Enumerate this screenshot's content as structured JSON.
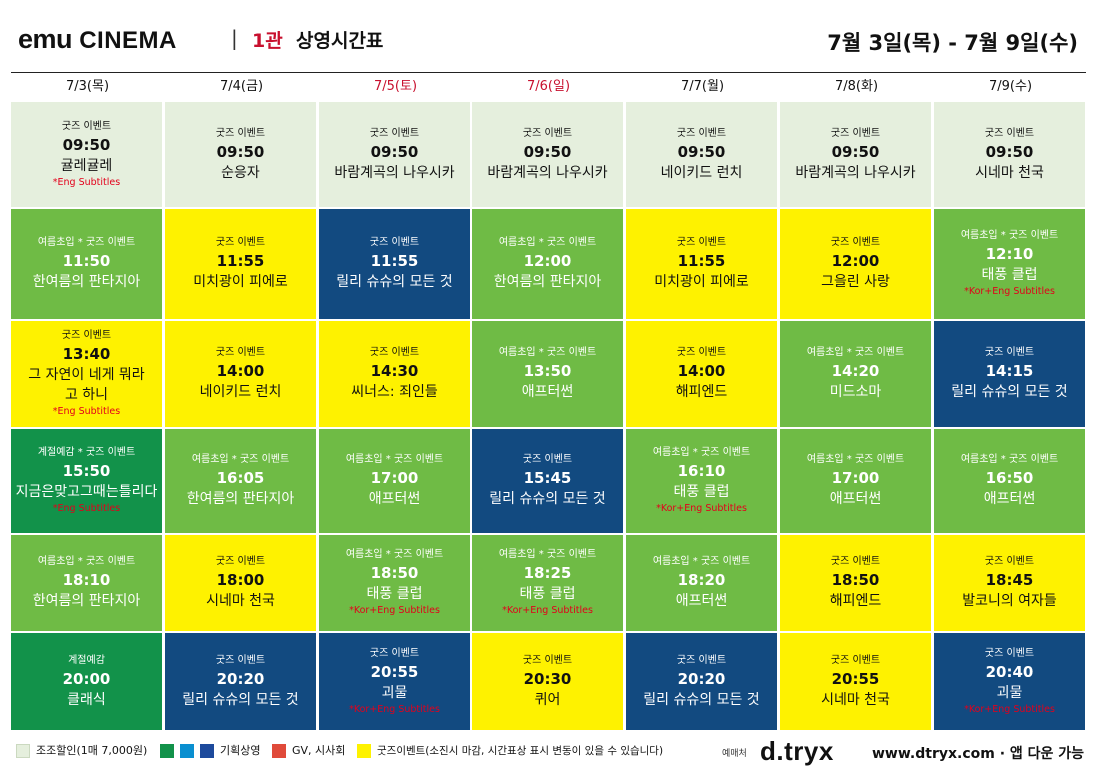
{
  "header": {
    "logo_emu": "emu",
    "logo_cinema": "CINEMA",
    "separator": "|",
    "hall": "1관",
    "title": "상영시간표",
    "period": "7월 3일(목) - 7월 9일(수)"
  },
  "days": [
    {
      "label": "7/3(목)",
      "weekend": false
    },
    {
      "label": "7/4(금)",
      "weekend": false
    },
    {
      "label": "7/5(토)",
      "weekend": true
    },
    {
      "label": "7/6(일)",
      "weekend": true
    },
    {
      "label": "7/7(월)",
      "weekend": false
    },
    {
      "label": "7/8(화)",
      "weekend": false
    },
    {
      "label": "7/9(수)",
      "weekend": false
    }
  ],
  "colors": {
    "light": "#e5efdd",
    "green": "#6fbb45",
    "dark_green": "#12924a",
    "yellow": "#fef200",
    "blue": "#124a80",
    "red": "#e3001b",
    "accent": "#c8102e"
  },
  "schedule": [
    [
      {
        "type": "light",
        "event": "굿즈 이벤트",
        "time": "09:50",
        "movie": "귤레귤레",
        "sub": "*Eng Subtitles"
      },
      {
        "type": "light",
        "event": "굿즈 이벤트",
        "time": "09:50",
        "movie": "순응자",
        "sub": ""
      },
      {
        "type": "light",
        "event": "굿즈 이벤트",
        "time": "09:50",
        "movie": "바람계곡의 나우시카",
        "sub": ""
      },
      {
        "type": "light",
        "event": "굿즈 이벤트",
        "time": "09:50",
        "movie": "바람계곡의 나우시카",
        "sub": ""
      },
      {
        "type": "light",
        "event": "굿즈 이벤트",
        "time": "09:50",
        "movie": "네이키드 런치",
        "sub": ""
      },
      {
        "type": "light",
        "event": "굿즈 이벤트",
        "time": "09:50",
        "movie": "바람계곡의 나우시카",
        "sub": ""
      },
      {
        "type": "light",
        "event": "굿즈 이벤트",
        "time": "09:50",
        "movie": "시네마 천국",
        "sub": ""
      }
    ],
    [
      {
        "type": "green",
        "event": "여름초입 * 굿즈 이벤트",
        "time": "11:50",
        "movie": "한여름의 판타지아",
        "sub": ""
      },
      {
        "type": "yellow",
        "event": "굿즈 이벤트",
        "time": "11:55",
        "movie": "미치광이 피에로",
        "sub": ""
      },
      {
        "type": "blue",
        "event": "굿즈 이벤트",
        "time": "11:55",
        "movie": "릴리 슈슈의 모든 것",
        "sub": ""
      },
      {
        "type": "green",
        "event": "여름초입 * 굿즈 이벤트",
        "time": "12:00",
        "movie": "한여름의 판타지아",
        "sub": ""
      },
      {
        "type": "yellow",
        "event": "굿즈 이벤트",
        "time": "11:55",
        "movie": "미치광이 피에로",
        "sub": ""
      },
      {
        "type": "yellow",
        "event": "굿즈 이벤트",
        "time": "12:00",
        "movie": "그을린 사랑",
        "sub": ""
      },
      {
        "type": "green",
        "event": "여름초입 * 굿즈 이벤트",
        "time": "12:10",
        "movie": "태풍 클럽",
        "sub": "*Kor+Eng Subtitles"
      }
    ],
    [
      {
        "type": "yellow",
        "event": "굿즈 이벤트",
        "time": "13:40",
        "movie": "그 자연이 네게 뭐라고 하니",
        "sub": "*Eng Subtitles"
      },
      {
        "type": "yellow",
        "event": "굿즈 이벤트",
        "time": "14:00",
        "movie": "네이키드 런치",
        "sub": ""
      },
      {
        "type": "yellow",
        "event": "굿즈 이벤트",
        "time": "14:30",
        "movie": "씨너스: 죄인들",
        "sub": ""
      },
      {
        "type": "green",
        "event": "여름초입 * 굿즈 이벤트",
        "time": "13:50",
        "movie": "애프터썬",
        "sub": ""
      },
      {
        "type": "yellow",
        "event": "굿즈 이벤트",
        "time": "14:00",
        "movie": "해피엔드",
        "sub": ""
      },
      {
        "type": "green",
        "event": "여름초입 * 굿즈 이벤트",
        "time": "14:20",
        "movie": "미드소마",
        "sub": ""
      },
      {
        "type": "blue",
        "event": "굿즈 이벤트",
        "time": "14:15",
        "movie": "릴리 슈슈의 모든 것",
        "sub": ""
      }
    ],
    [
      {
        "type": "dark",
        "event": "계절예감 * 굿즈 이벤트",
        "time": "15:50",
        "movie": "지금은맞고그때는틀리다",
        "sub": "*Eng Subtitles"
      },
      {
        "type": "green",
        "event": "여름초입 * 굿즈 이벤트",
        "time": "16:05",
        "movie": "한여름의 판타지아",
        "sub": ""
      },
      {
        "type": "green",
        "event": "여름초입 * 굿즈 이벤트",
        "time": "17:00",
        "movie": "애프터썬",
        "sub": ""
      },
      {
        "type": "blue",
        "event": "굿즈 이벤트",
        "time": "15:45",
        "movie": "릴리 슈슈의 모든 것",
        "sub": ""
      },
      {
        "type": "green",
        "event": "여름초입 * 굿즈 이벤트",
        "time": "16:10",
        "movie": "태풍 클럽",
        "sub": "*Kor+Eng Subtitles"
      },
      {
        "type": "green",
        "event": "여름초입 * 굿즈 이벤트",
        "time": "17:00",
        "movie": "애프터썬",
        "sub": ""
      },
      {
        "type": "green",
        "event": "여름초입 * 굿즈 이벤트",
        "time": "16:50",
        "movie": "애프터썬",
        "sub": ""
      }
    ],
    [
      {
        "type": "green",
        "event": "여름초입 * 굿즈 이벤트",
        "time": "18:10",
        "movie": "한여름의 판타지아",
        "sub": ""
      },
      {
        "type": "yellow",
        "event": "굿즈 이벤트",
        "time": "18:00",
        "movie": "시네마 천국",
        "sub": ""
      },
      {
        "type": "green",
        "event": "여름초입 * 굿즈 이벤트",
        "time": "18:50",
        "movie": "태풍 클럽",
        "sub": "*Kor+Eng Subtitles"
      },
      {
        "type": "green",
        "event": "여름초입 * 굿즈 이벤트",
        "time": "18:25",
        "movie": "태풍 클럽",
        "sub": "*Kor+Eng Subtitles"
      },
      {
        "type": "green",
        "event": "여름초입 * 굿즈 이벤트",
        "time": "18:20",
        "movie": "애프터썬",
        "sub": ""
      },
      {
        "type": "yellow",
        "event": "굿즈 이벤트",
        "time": "18:50",
        "movie": "해피엔드",
        "sub": ""
      },
      {
        "type": "yellow",
        "event": "굿즈 이벤트",
        "time": "18:45",
        "movie": "발코니의 여자들",
        "sub": ""
      }
    ],
    [
      {
        "type": "dark",
        "event": "계절예감",
        "time": "20:00",
        "movie": "클래식",
        "sub": ""
      },
      {
        "type": "blue",
        "event": "굿즈 이벤트",
        "time": "20:20",
        "movie": "릴리 슈슈의 모든 것",
        "sub": ""
      },
      {
        "type": "blue",
        "event": "굿즈 이벤트",
        "time": "20:55",
        "movie": "괴물",
        "sub": "*Kor+Eng Subtitles"
      },
      {
        "type": "yellow",
        "event": "굿즈 이벤트",
        "time": "20:30",
        "movie": "퀴어",
        "sub": ""
      },
      {
        "type": "blue",
        "event": "굿즈 이벤트",
        "time": "20:20",
        "movie": "릴리 슈슈의 모든 것",
        "sub": ""
      },
      {
        "type": "yellow",
        "event": "굿즈 이벤트",
        "time": "20:55",
        "movie": "시네마 천국",
        "sub": ""
      },
      {
        "type": "blue",
        "event": "굿즈 이벤트",
        "time": "20:40",
        "movie": "괴물",
        "sub": "*Kor+Eng Subtitles"
      }
    ]
  ],
  "legend": {
    "discount": "조조할인(1매 7,000원)",
    "special": "기획상영",
    "gv": "GV, 시사회",
    "goods": "굿즈이벤트(소진시 마감, 시간표상 표시 변동이 있을 수 있습니다)",
    "booking_label": "예매처",
    "brand": "d.tryx",
    "site": "www.dtryx.com · 앱 다운 가능"
  }
}
